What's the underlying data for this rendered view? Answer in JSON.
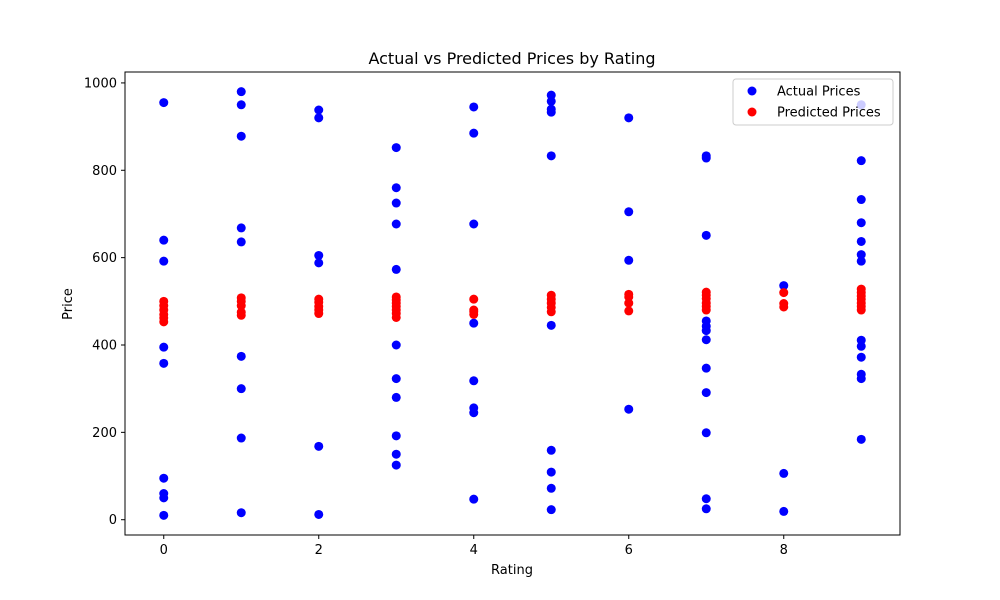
{
  "chart_data": {
    "type": "scatter",
    "title": "Actual vs Predicted Prices by Rating",
    "xlabel": "Rating",
    "ylabel": "Price",
    "xlim": [
      -0.5,
      9.5
    ],
    "ylim": [
      -35,
      1025
    ],
    "xticks": [
      0,
      2,
      4,
      6,
      8
    ],
    "yticks": [
      0,
      200,
      400,
      600,
      800,
      1000
    ],
    "grid": false,
    "legend_position": "top-right",
    "series": [
      {
        "name": "Actual Prices",
        "color": "#0000ff",
        "points": [
          [
            0,
            955
          ],
          [
            0,
            640
          ],
          [
            0,
            592
          ],
          [
            0,
            395
          ],
          [
            0,
            358
          ],
          [
            0,
            95
          ],
          [
            0,
            60
          ],
          [
            0,
            50
          ],
          [
            0,
            10
          ],
          [
            1,
            980
          ],
          [
            1,
            950
          ],
          [
            1,
            878
          ],
          [
            1,
            668
          ],
          [
            1,
            636
          ],
          [
            1,
            374
          ],
          [
            1,
            300
          ],
          [
            1,
            187
          ],
          [
            1,
            16
          ],
          [
            2,
            938
          ],
          [
            2,
            920
          ],
          [
            2,
            605
          ],
          [
            2,
            588
          ],
          [
            2,
            168
          ],
          [
            2,
            12
          ],
          [
            3,
            852
          ],
          [
            3,
            760
          ],
          [
            3,
            725
          ],
          [
            3,
            677
          ],
          [
            3,
            573
          ],
          [
            3,
            400
          ],
          [
            3,
            323
          ],
          [
            3,
            280
          ],
          [
            3,
            192
          ],
          [
            3,
            150
          ],
          [
            3,
            125
          ],
          [
            4,
            945
          ],
          [
            4,
            885
          ],
          [
            4,
            677
          ],
          [
            4,
            450
          ],
          [
            4,
            318
          ],
          [
            4,
            256
          ],
          [
            4,
            245
          ],
          [
            4,
            47
          ],
          [
            5,
            972
          ],
          [
            5,
            958
          ],
          [
            5,
            940
          ],
          [
            5,
            933
          ],
          [
            5,
            833
          ],
          [
            5,
            445
          ],
          [
            5,
            159
          ],
          [
            5,
            109
          ],
          [
            5,
            72
          ],
          [
            5,
            23
          ],
          [
            6,
            920
          ],
          [
            6,
            705
          ],
          [
            6,
            594
          ],
          [
            6,
            253
          ],
          [
            7,
            833
          ],
          [
            7,
            828
          ],
          [
            7,
            651
          ],
          [
            7,
            455
          ],
          [
            7,
            443
          ],
          [
            7,
            433
          ],
          [
            7,
            412
          ],
          [
            7,
            347
          ],
          [
            7,
            291
          ],
          [
            7,
            199
          ],
          [
            7,
            48
          ],
          [
            7,
            25
          ],
          [
            8,
            536
          ],
          [
            8,
            106
          ],
          [
            8,
            19
          ],
          [
            9,
            950
          ],
          [
            9,
            822
          ],
          [
            9,
            733
          ],
          [
            9,
            680
          ],
          [
            9,
            637
          ],
          [
            9,
            607
          ],
          [
            9,
            592
          ],
          [
            9,
            411
          ],
          [
            9,
            397
          ],
          [
            9,
            372
          ],
          [
            9,
            333
          ],
          [
            9,
            323
          ],
          [
            9,
            184
          ]
        ]
      },
      {
        "name": "Predicted Prices",
        "color": "#ff0000",
        "points": [
          [
            0,
            500
          ],
          [
            0,
            490
          ],
          [
            0,
            480
          ],
          [
            0,
            470
          ],
          [
            0,
            462
          ],
          [
            0,
            453
          ],
          [
            1,
            508
          ],
          [
            1,
            500
          ],
          [
            1,
            490
          ],
          [
            1,
            475
          ],
          [
            1,
            468
          ],
          [
            2,
            505
          ],
          [
            2,
            498
          ],
          [
            2,
            488
          ],
          [
            2,
            480
          ],
          [
            2,
            472
          ],
          [
            3,
            510
          ],
          [
            3,
            503
          ],
          [
            3,
            496
          ],
          [
            3,
            488
          ],
          [
            3,
            480
          ],
          [
            3,
            472
          ],
          [
            3,
            463
          ],
          [
            4,
            505
          ],
          [
            4,
            480
          ],
          [
            4,
            476
          ],
          [
            4,
            470
          ],
          [
            5,
            514
          ],
          [
            5,
            505
          ],
          [
            5,
            496
          ],
          [
            5,
            486
          ],
          [
            5,
            476
          ],
          [
            6,
            516
          ],
          [
            6,
            510
          ],
          [
            6,
            496
          ],
          [
            6,
            478
          ],
          [
            7,
            521
          ],
          [
            7,
            514
          ],
          [
            7,
            506
          ],
          [
            7,
            496
          ],
          [
            7,
            488
          ],
          [
            7,
            480
          ],
          [
            8,
            520
          ],
          [
            8,
            495
          ],
          [
            8,
            487
          ],
          [
            9,
            528
          ],
          [
            9,
            520
          ],
          [
            9,
            512
          ],
          [
            9,
            505
          ],
          [
            9,
            496
          ],
          [
            9,
            488
          ],
          [
            9,
            480
          ]
        ]
      }
    ]
  }
}
